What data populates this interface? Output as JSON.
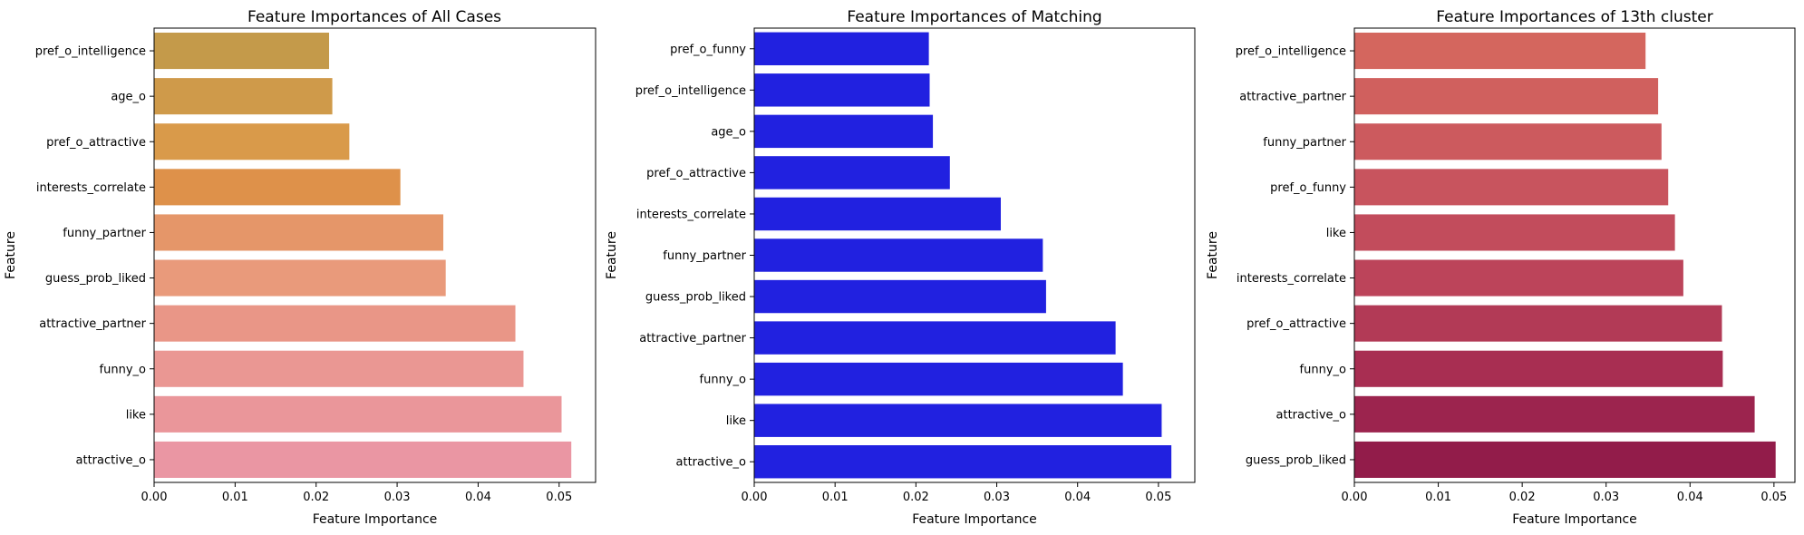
{
  "chart_data": [
    {
      "type": "bar",
      "orientation": "horizontal",
      "title": "Feature Importances of All Cases",
      "xlabel": "Feature Importance",
      "ylabel": "Feature",
      "xlim": [
        0,
        0.0545
      ],
      "xticks": [
        "0.00",
        "0.01",
        "0.02",
        "0.03",
        "0.04",
        "0.05"
      ],
      "grid": false,
      "categories": [
        "pref_o_intelligence",
        "age_o",
        "pref_o_attractive",
        "interests_correlate",
        "funny_partner",
        "guess_prob_liked",
        "attractive_partner",
        "funny_o",
        "like",
        "attractive_o"
      ],
      "values": [
        0.0216,
        0.022,
        0.0241,
        0.0304,
        0.0357,
        0.036,
        0.0446,
        0.0456,
        0.0503,
        0.0515
      ],
      "colors": [
        "#c49a4a",
        "#cf9a4a",
        "#d99a4a",
        "#de914a",
        "#e59669",
        "#e99a7b",
        "#e99687",
        "#ea9793",
        "#ea969a",
        "#ea96a3"
      ]
    },
    {
      "type": "bar",
      "orientation": "horizontal",
      "title": "Feature Importances of Matching",
      "xlabel": "Feature Importance",
      "ylabel": "Feature",
      "xlim": [
        0,
        0.0545
      ],
      "xticks": [
        "0.00",
        "0.01",
        "0.02",
        "0.03",
        "0.04",
        "0.05"
      ],
      "grid": false,
      "categories": [
        "pref_o_funny",
        "pref_o_intelligence",
        "age_o",
        "pref_o_attractive",
        "interests_correlate",
        "funny_partner",
        "guess_prob_liked",
        "attractive_partner",
        "funny_o",
        "like",
        "attractive_o"
      ],
      "values": [
        0.0216,
        0.0217,
        0.0221,
        0.0242,
        0.0305,
        0.0357,
        0.0361,
        0.0447,
        0.0456,
        0.0504,
        0.0516
      ],
      "colors": [
        "#2121e0"
      ]
    },
    {
      "type": "bar",
      "orientation": "horizontal",
      "title": "Feature Importances of 13th cluster",
      "xlabel": "Feature Importance",
      "ylabel": "Feature",
      "xlim": [
        0,
        0.0525
      ],
      "xticks": [
        "0.00",
        "0.01",
        "0.02",
        "0.03",
        "0.04",
        "0.05"
      ],
      "grid": false,
      "categories": [
        "pref_o_intelligence",
        "attractive_partner",
        "funny_partner",
        "pref_o_funny",
        "like",
        "interests_correlate",
        "pref_o_attractive",
        "funny_o",
        "attractive_o",
        "guess_prob_liked"
      ],
      "values": [
        0.0347,
        0.0362,
        0.0366,
        0.0374,
        0.0382,
        0.0392,
        0.0438,
        0.0439,
        0.0477,
        0.0502
      ],
      "colors": [
        "#d4665e",
        "#d0605e",
        "#cc5a5e",
        "#c8545e",
        "#c24c5c",
        "#bc445a",
        "#b23a56",
        "#a82e52",
        "#9c244e",
        "#921c4a"
      ]
    }
  ]
}
